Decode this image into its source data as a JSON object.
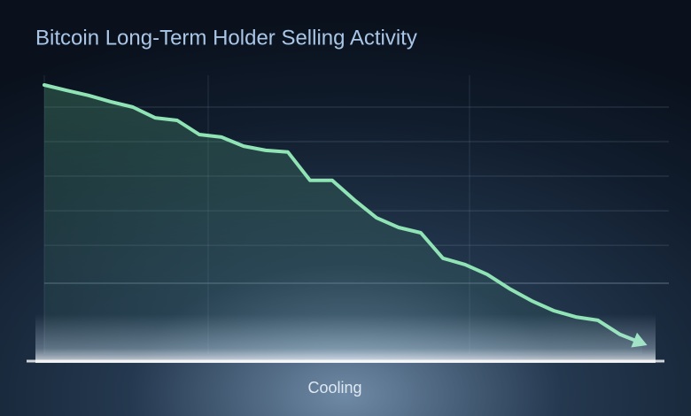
{
  "chart_data": {
    "type": "line",
    "title": "Bitcoin Long-Term Holder Selling Activity",
    "x_label": "Cooling",
    "series": [
      {
        "name": "Long-Term Holder Selling",
        "color": "#8fe3b4",
        "values": [
          95,
          93.1,
          91.3,
          89.1,
          87.2,
          83.4,
          82.5,
          77.5,
          76.6,
          73.4,
          71.9,
          71.3,
          61.3,
          61.3,
          54.4,
          48.1,
          44.7,
          42.8,
          33.8,
          31.6,
          28.1,
          23.1,
          18.8,
          15.3,
          13.1,
          11.9,
          6.9,
          3.8
        ]
      }
    ],
    "ylim": [
      0,
      100
    ],
    "yticks": [
      25,
      38.4,
      50.6,
      62.8,
      75,
      87.2
    ],
    "grid": true
  }
}
